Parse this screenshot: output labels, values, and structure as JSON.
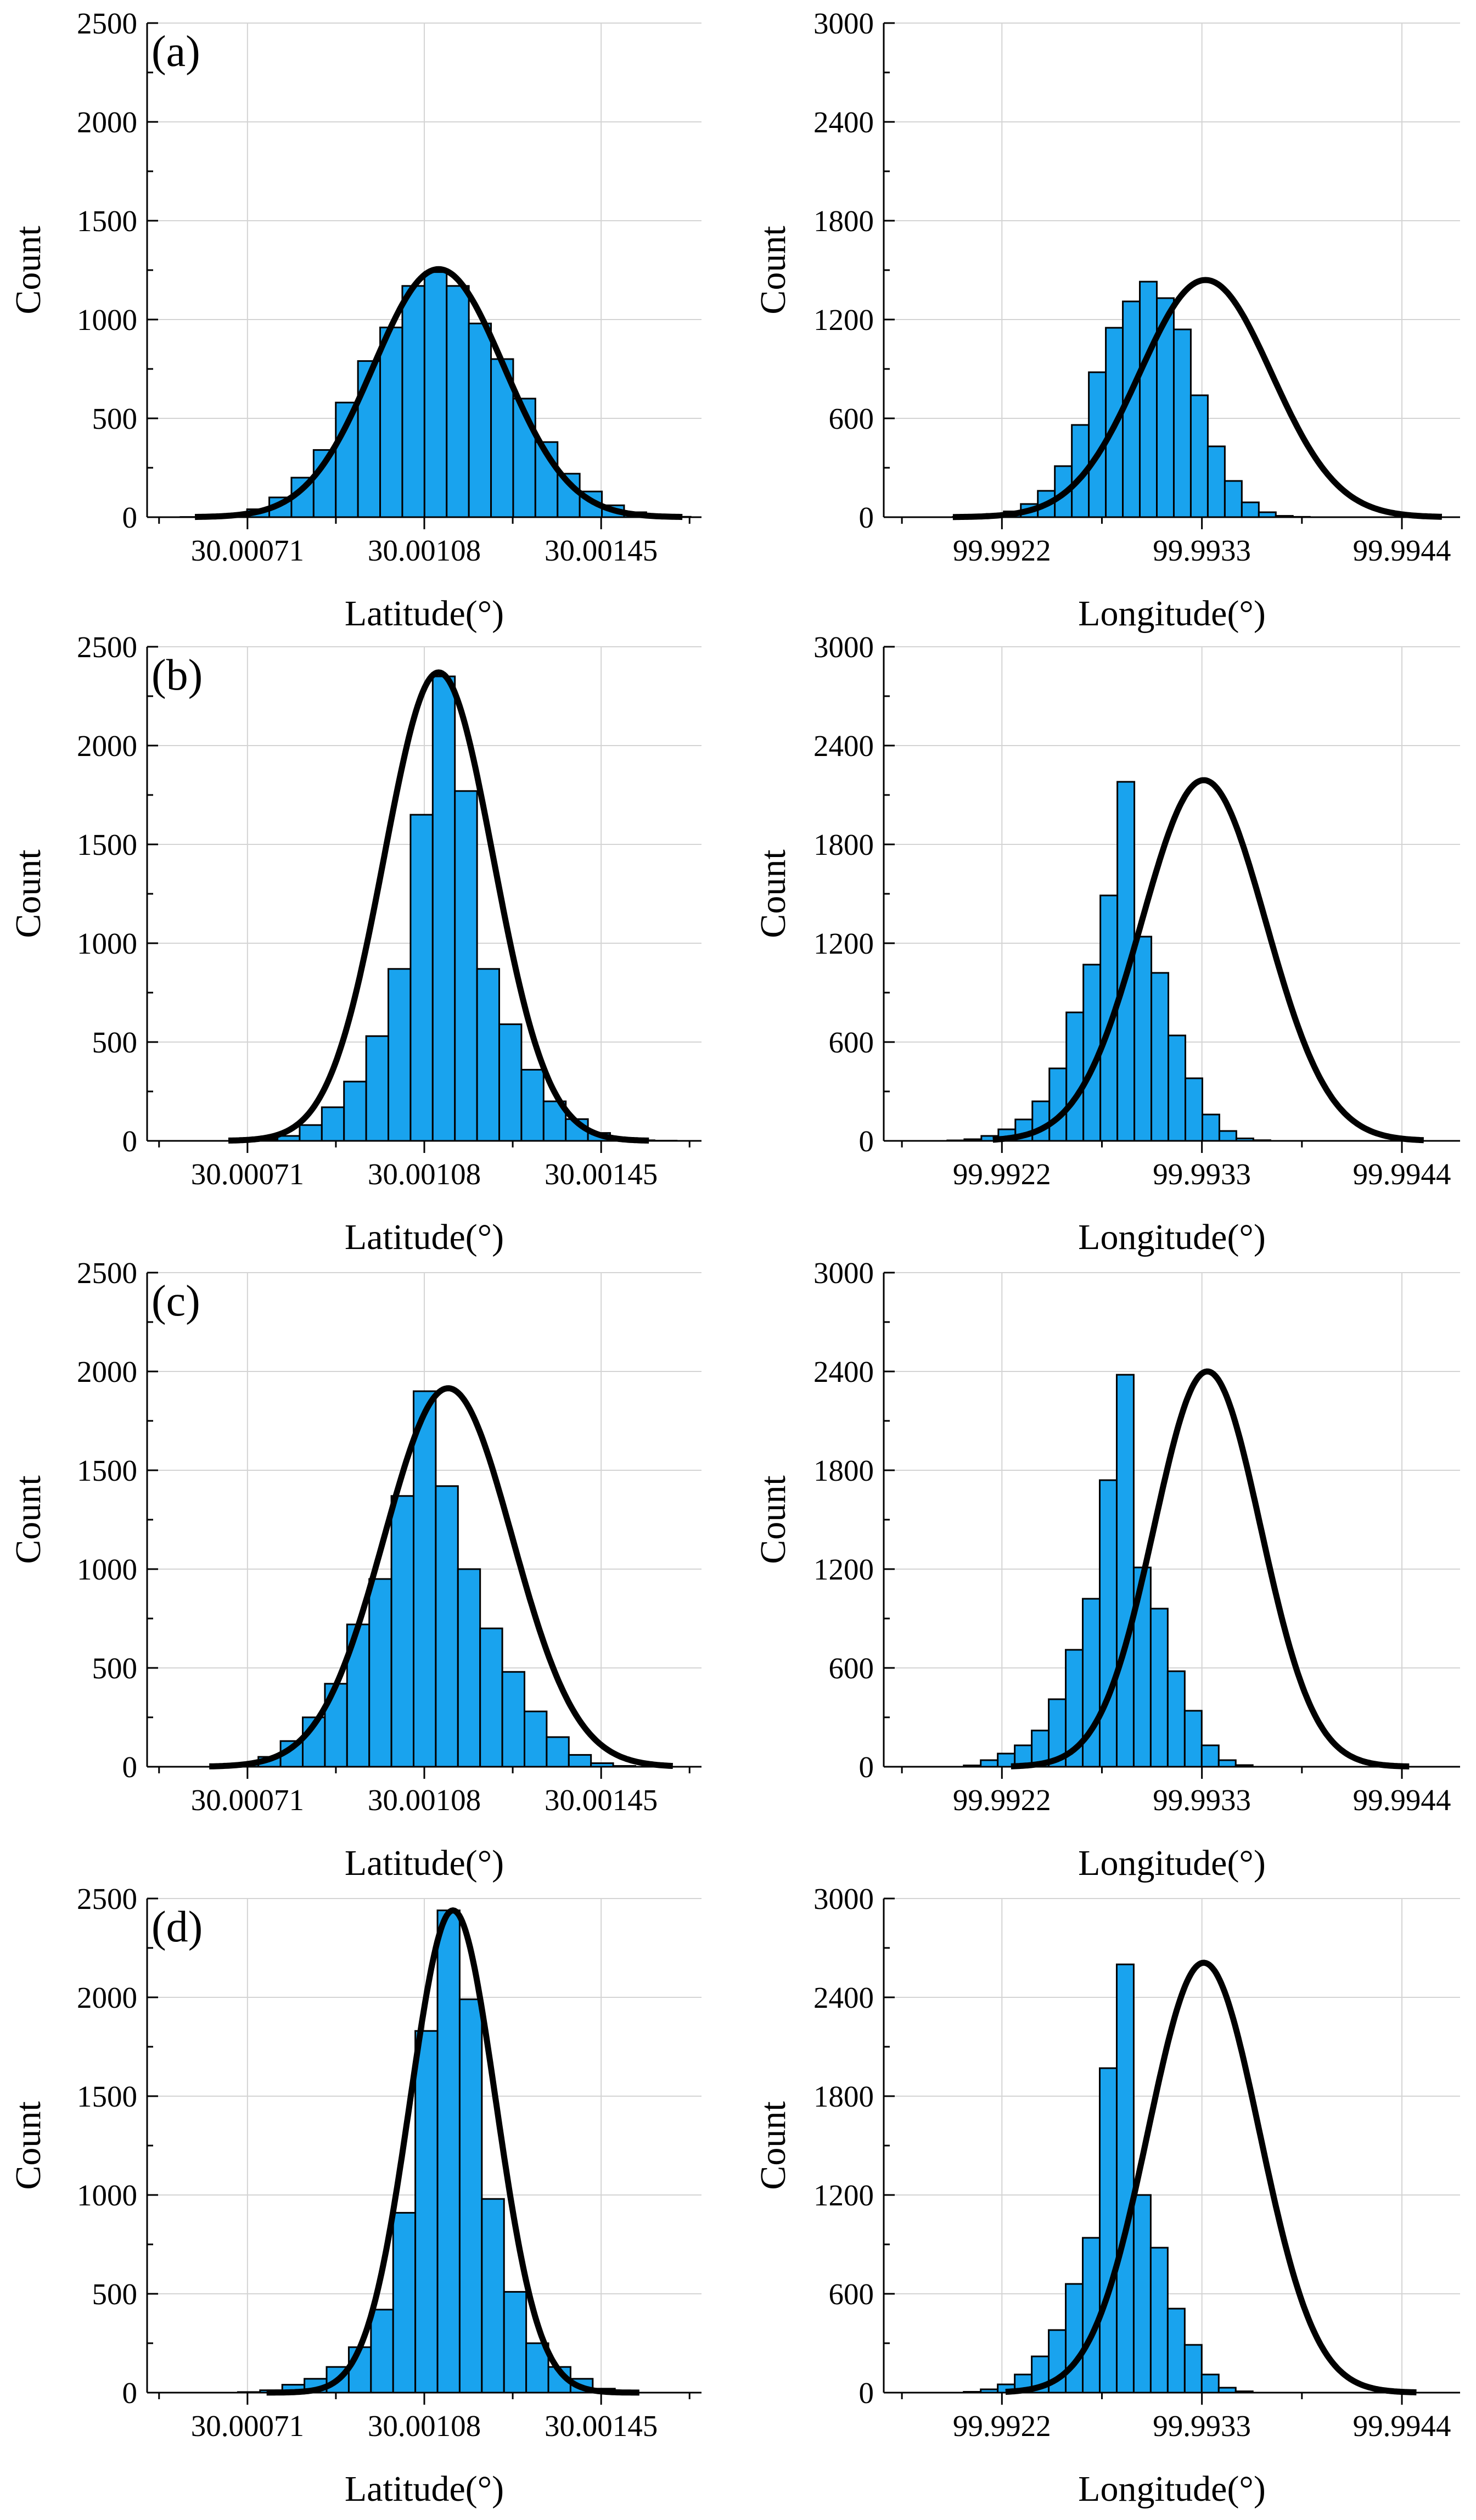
{
  "chart_data": [
    {
      "id": "a-lat",
      "type": "bar",
      "panel_label": "(a)",
      "xlabel": "Latitude(°)",
      "ylabel": "Count",
      "xlim": [
        30.0005,
        30.00166
      ],
      "ylim": [
        0,
        2500
      ],
      "yticks": [
        0,
        500,
        1000,
        1500,
        2000,
        2500
      ],
      "ytick_labels": [
        "0",
        "500",
        "1000",
        "1500",
        "2000",
        "2500"
      ],
      "xticks": [
        30.00071,
        30.00108,
        30.00145
      ],
      "xtick_labels": [
        "30.00071",
        "30.00108",
        "30.00145"
      ],
      "bin_start": 30.00057,
      "bin_width": 4.64e-05,
      "values": [
        1,
        6,
        14,
        40,
        100,
        200,
        340,
        580,
        790,
        960,
        1170,
        1240,
        1170,
        980,
        800,
        600,
        380,
        220,
        130,
        60,
        25,
        8,
        2
      ],
      "fit": {
        "mean": 30.00111,
        "sigma": 0.000137,
        "peak": 1255,
        "range": [
          30.0006,
          30.00162
        ]
      }
    },
    {
      "id": "a-lon",
      "type": "bar",
      "xlabel": "Longitude(°)",
      "ylabel": "Count",
      "xlim": [
        99.99155,
        99.99472
      ],
      "ylim": [
        0,
        3000
      ],
      "yticks": [
        0,
        600,
        1200,
        1800,
        2400,
        3000
      ],
      "ytick_labels": [
        "0",
        "600",
        "1200",
        "1800",
        "2400",
        "3000"
      ],
      "xticks": [
        99.9922,
        99.9933,
        99.9944
      ],
      "xtick_labels": [
        "99.9922",
        "99.9933",
        "99.9944"
      ],
      "bin_start": 99.99193,
      "bin_width": 9.35e-05,
      "values": [
        2,
        8,
        20,
        35,
        80,
        160,
        310,
        560,
        880,
        1150,
        1310,
        1430,
        1330,
        1140,
        740,
        430,
        220,
        90,
        30,
        8,
        2
      ],
      "fit": {
        "mean": 99.99332,
        "sigma": 0.000363,
        "peak": 1440,
        "range": [
          99.99193,
          99.99462
        ]
      }
    },
    {
      "id": "b-lat",
      "type": "bar",
      "panel_label": "(b)",
      "xlabel": "Latitude(°)",
      "ylabel": "Count",
      "xlim": [
        30.0005,
        30.00166
      ],
      "ylim": [
        0,
        2500
      ],
      "yticks": [
        0,
        500,
        1000,
        1500,
        2000,
        2500
      ],
      "ytick_labels": [
        "0",
        "500",
        "1000",
        "1500",
        "2000",
        "2500"
      ],
      "xticks": [
        30.00071,
        30.00108,
        30.00145
      ],
      "xtick_labels": [
        "30.00071",
        "30.00108",
        "30.00145"
      ],
      "bin_start": 30.00068,
      "bin_width": 4.64e-05,
      "values": [
        3,
        8,
        25,
        80,
        170,
        300,
        530,
        870,
        1650,
        2350,
        1770,
        870,
        590,
        360,
        200,
        110,
        40,
        12,
        3,
        1
      ],
      "fit": {
        "mean": 30.00111,
        "sigma": 0.000114,
        "peak": 2370,
        "range": [
          30.00067,
          30.00155
        ]
      }
    },
    {
      "id": "b-lon",
      "type": "bar",
      "xlabel": "Longitude(°)",
      "ylabel": "Count",
      "xlim": [
        99.99155,
        99.99472
      ],
      "ylim": [
        0,
        3000
      ],
      "yticks": [
        0,
        600,
        1200,
        1800,
        2400,
        3000
      ],
      "ytick_labels": [
        "0",
        "600",
        "1200",
        "1800",
        "2400",
        "3000"
      ],
      "xticks": [
        99.9922,
        99.9933,
        99.9944
      ],
      "xtick_labels": [
        "99.9922",
        "99.9933",
        "99.9944"
      ],
      "bin_start": 99.9919,
      "bin_width": 9.35e-05,
      "values": [
        3,
        10,
        30,
        70,
        130,
        240,
        440,
        780,
        1070,
        1490,
        2180,
        1240,
        1020,
        640,
        380,
        160,
        60,
        15,
        4
      ],
      "fit": {
        "mean": 99.99331,
        "sigma": 0.000342,
        "peak": 2190,
        "range": [
          99.99215,
          99.99452
        ]
      }
    },
    {
      "id": "c-lat",
      "type": "bar",
      "panel_label": "(c)",
      "xlabel": "Latitude(°)",
      "ylabel": "Count",
      "xlim": [
        30.0005,
        30.00166
      ],
      "ylim": [
        0,
        2500
      ],
      "yticks": [
        0,
        500,
        1000,
        1500,
        2000,
        2500
      ],
      "ytick_labels": [
        "0",
        "500",
        "1000",
        "1500",
        "2000",
        "2500"
      ],
      "xticks": [
        30.00071,
        30.00108,
        30.00145
      ],
      "xtick_labels": [
        "30.00071",
        "30.00108",
        "30.00145"
      ],
      "bin_start": 30.00064,
      "bin_width": 4.64e-05,
      "values": [
        3,
        15,
        50,
        130,
        250,
        420,
        720,
        950,
        1370,
        1900,
        1420,
        1000,
        700,
        480,
        280,
        150,
        60,
        18,
        4
      ],
      "fit": {
        "mean": 30.00113,
        "sigma": 0.000134,
        "peak": 1915,
        "range": [
          30.00063,
          30.0016
        ]
      }
    },
    {
      "id": "c-lon",
      "type": "bar",
      "xlabel": "Longitude(°)",
      "ylabel": "Count",
      "xlim": [
        99.99155,
        99.99472
      ],
      "ylim": [
        0,
        3000
      ],
      "yticks": [
        0,
        600,
        1200,
        1800,
        2400,
        3000
      ],
      "ytick_labels": [
        "0",
        "600",
        "1200",
        "1800",
        "2400",
        "3000"
      ],
      "xticks": [
        99.9922,
        99.9933,
        99.9944
      ],
      "xtick_labels": [
        "99.9922",
        "99.9933",
        "99.9944"
      ],
      "bin_start": 99.99199,
      "bin_width": 9.35e-05,
      "values": [
        8,
        40,
        80,
        130,
        220,
        410,
        710,
        1020,
        1740,
        2380,
        1210,
        960,
        580,
        340,
        130,
        40,
        10
      ],
      "fit": {
        "mean": 99.99333,
        "sigma": 0.000293,
        "peak": 2400,
        "range": [
          99.99225,
          99.99444
        ]
      }
    },
    {
      "id": "d-lat",
      "type": "bar",
      "panel_label": "(d)",
      "xlabel": "Latitude(°)",
      "ylabel": "Count",
      "xlim": [
        30.0005,
        30.00166
      ],
      "ylim": [
        0,
        2500
      ],
      "yticks": [
        0,
        500,
        1000,
        1500,
        2000,
        2500
      ],
      "ytick_labels": [
        "0",
        "500",
        "1000",
        "1500",
        "2000",
        "2500"
      ],
      "xticks": [
        30.00071,
        30.00108,
        30.00145
      ],
      "xtick_labels": [
        "30.00071",
        "30.00108",
        "30.00145"
      ],
      "bin_start": 30.00069,
      "bin_width": 4.64e-05,
      "values": [
        3,
        12,
        40,
        70,
        130,
        230,
        420,
        910,
        1830,
        2440,
        1990,
        980,
        510,
        250,
        130,
        70,
        20,
        5
      ],
      "fit": {
        "mean": 30.00114,
        "sigma": 8.95e-05,
        "peak": 2440,
        "range": [
          30.00075,
          30.00153
        ]
      }
    },
    {
      "id": "d-lon",
      "type": "bar",
      "xlabel": "Longitude(°)",
      "ylabel": "Count",
      "xlim": [
        99.99155,
        99.99472
      ],
      "ylim": [
        0,
        3000
      ],
      "yticks": [
        0,
        600,
        1200,
        1800,
        2400,
        3000
      ],
      "ytick_labels": [
        "0",
        "600",
        "1200",
        "1800",
        "2400",
        "3000"
      ],
      "xticks": [
        99.9922,
        99.9933,
        99.9944
      ],
      "xtick_labels": [
        "99.9922",
        "99.9933",
        "99.9944"
      ],
      "bin_start": 99.99199,
      "bin_width": 9.35e-05,
      "values": [
        5,
        20,
        50,
        110,
        220,
        380,
        660,
        940,
        1970,
        2600,
        1200,
        880,
        510,
        290,
        110,
        30,
        8
      ],
      "fit": {
        "mean": 99.99331,
        "sigma": 0.000307,
        "peak": 2610,
        "range": [
          99.99222,
          99.99448
        ]
      }
    }
  ]
}
